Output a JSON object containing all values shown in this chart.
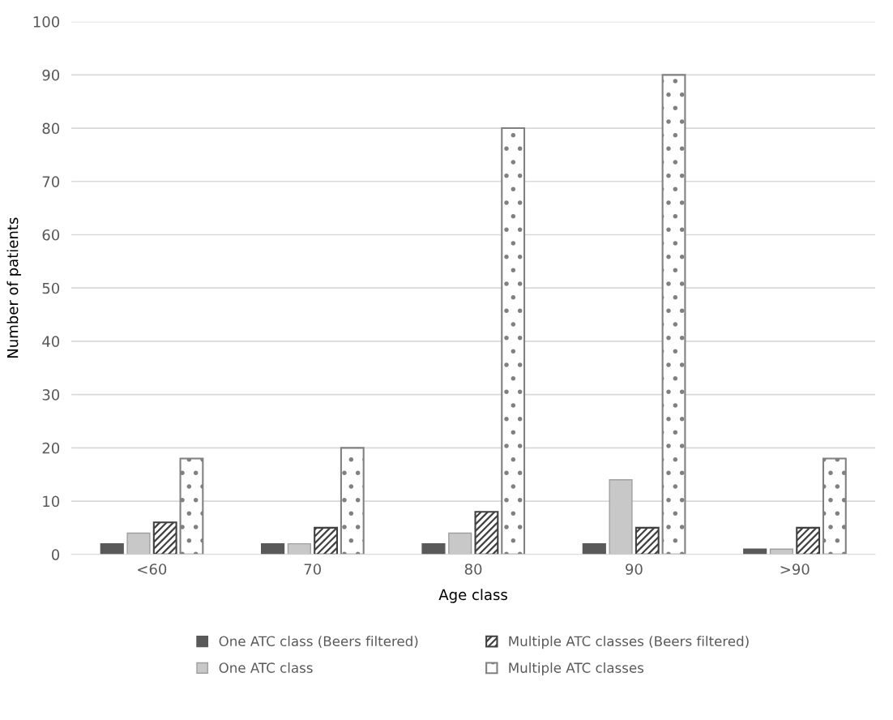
{
  "chart_data": {
    "type": "bar",
    "xlabel": "Age class",
    "ylabel": "Number of patients",
    "categories": [
      "<60",
      "70",
      "80",
      "90",
      ">90"
    ],
    "series": [
      {
        "name": "One ATC class (Beers filtered)",
        "color": "#595959",
        "values": [
          2,
          2,
          2,
          2,
          1
        ]
      },
      {
        "name": "One ATC class",
        "color": "#c8c8c8",
        "values": [
          4,
          2,
          4,
          14,
          1
        ]
      },
      {
        "name": "Multiple ATC classes (Beers filtered)",
        "color": "#404040",
        "values": [
          6,
          5,
          8,
          5,
          5
        ]
      },
      {
        "name": "Multiple ATC classes",
        "color": "#808080",
        "values": [
          18,
          20,
          80,
          90,
          18
        ]
      }
    ],
    "ylim": [
      0,
      100
    ],
    "yticks": [
      0,
      10,
      20,
      30,
      40,
      50,
      60,
      70,
      80,
      90,
      100
    ],
    "grid": "y",
    "legend": "bottom"
  }
}
